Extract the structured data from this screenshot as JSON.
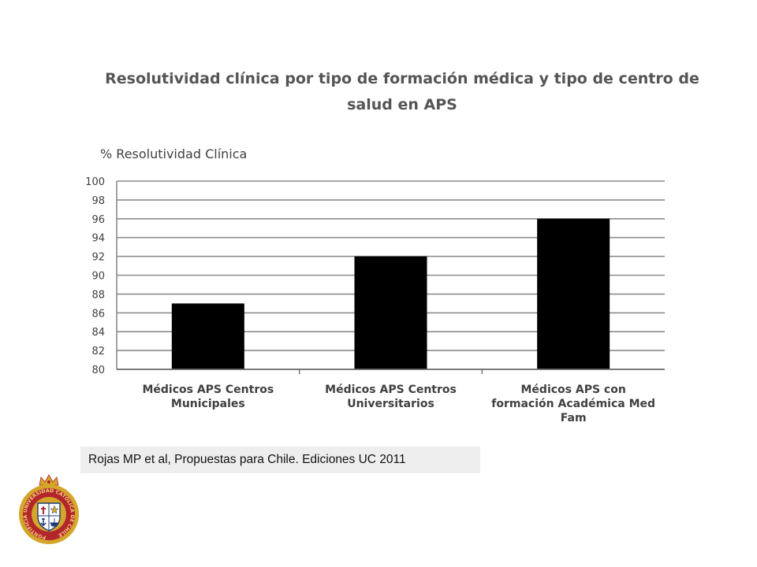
{
  "chart_data": {
    "type": "bar",
    "title_lines": [
      "Resolutividad clínica  por tipo de formación médica  y tipo de centro de",
      "salud en APS"
    ],
    "ylabel": "% Resolutividad Clínica",
    "xlabel": "",
    "ylim": [
      80,
      100
    ],
    "yticks": [
      80,
      82,
      84,
      86,
      88,
      90,
      92,
      94,
      96,
      98,
      100
    ],
    "grid": true,
    "legend": "none",
    "categories": [
      [
        "Médicos APS Centros",
        "Municipales"
      ],
      [
        "Médicos APS Centros",
        "Universitarios"
      ],
      [
        "Médicos APS con",
        "formación Académica Med",
        "Fam"
      ]
    ],
    "values": [
      87,
      92,
      96
    ],
    "bar_color": "#000000"
  },
  "citation": "Rojas MP et al, Propuestas para Chile. Ediciones UC 2011",
  "seal": {
    "text": "PONTIFICIA UNIVERSIDAD CATÓLICA DE CHILE",
    "colors": {
      "gold": "#d4a62a",
      "red": "#b3262b",
      "navy": "#1f3c7a"
    }
  }
}
